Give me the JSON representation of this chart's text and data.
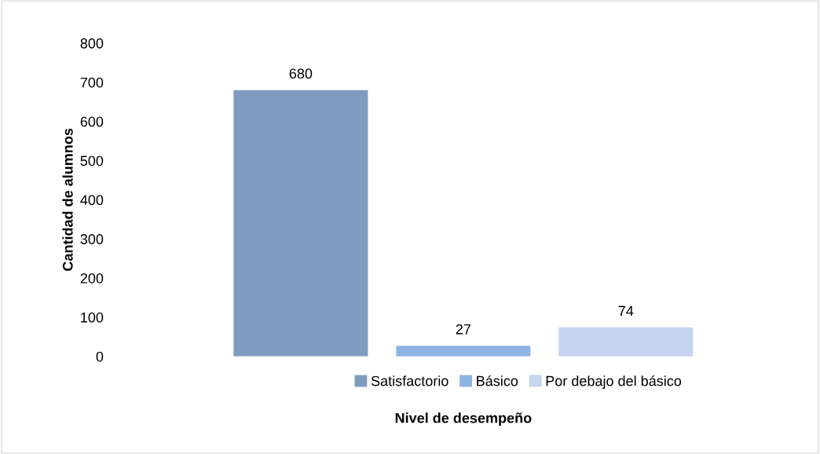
{
  "chart_data": {
    "type": "bar",
    "xlabel": "Nivel de desempeño",
    "ylabel": "Cantidad de alumnos",
    "categories": [
      null
    ],
    "series": [
      {
        "name": "Satisfactorio",
        "color": "#7f9cc0",
        "values": [
          680
        ]
      },
      {
        "name": "Básico",
        "color": "#8db3e2",
        "values": [
          27
        ]
      },
      {
        "name": "Por debajo del básico",
        "color": "#c5d5ee",
        "values": [
          74
        ]
      }
    ],
    "ylim": [
      0,
      800
    ],
    "yticks": [
      0,
      100,
      200,
      300,
      400,
      500,
      600,
      700,
      800
    ],
    "data_labels": true,
    "legend": "bottom",
    "grid": false
  }
}
